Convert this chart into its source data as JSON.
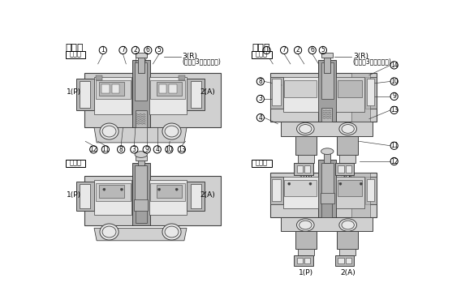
{
  "title_left": "横配管",
  "title_right": "下配管",
  "label_fukki": "復帰時",
  "label_sado": "作動時",
  "label_3R": "3(R)",
  "label_3port": "(ただし3ポートのみ)",
  "label_1P": "1(P)",
  "label_2A": "2(A)",
  "bg_color": "#ffffff",
  "gray1": "#e8e8e8",
  "gray2": "#d0d0d0",
  "gray3": "#b8b8b8",
  "gray4": "#a0a0a0",
  "gray5": "#888888",
  "ec": "#404040",
  "figsize": [
    5.84,
    3.75
  ],
  "dpi": 100
}
